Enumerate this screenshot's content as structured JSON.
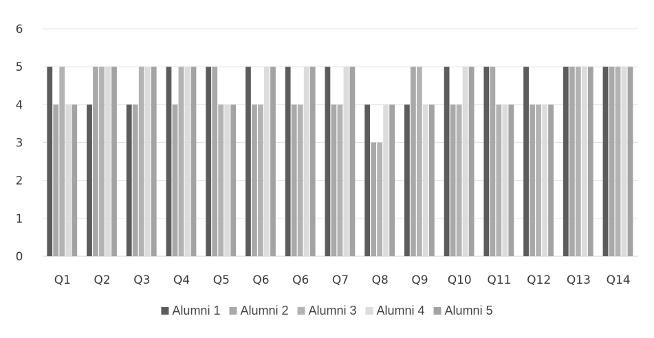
{
  "chart_data": {
    "type": "bar",
    "title": "",
    "xlabel": "",
    "ylabel": "",
    "ylim": [
      0,
      6
    ],
    "yticks": [
      "0",
      "1",
      "2",
      "3",
      "4",
      "5",
      "6"
    ],
    "grid": true,
    "legend_position": "bottom",
    "categories": [
      "Q1",
      "Q2",
      "Q3",
      "Q4",
      "Q5",
      "Q6",
      "Q6",
      "Q7",
      "Q8",
      "Q9",
      "Q10",
      "Q11",
      "Q12",
      "Q13",
      "Q14"
    ],
    "series": [
      {
        "name": "Alumni 1",
        "color": "#5c5c5c",
        "values": [
          5,
          4,
          4,
          5,
          5,
          5,
          5,
          5,
          4,
          4,
          5,
          5,
          5,
          5,
          5
        ]
      },
      {
        "name": "Alumni 2",
        "color": "#a9a9a9",
        "values": [
          4,
          5,
          4,
          4,
          5,
          4,
          4,
          4,
          3,
          5,
          4,
          5,
          4,
          5,
          5
        ]
      },
      {
        "name": "Alumni 3",
        "color": "#b3b3b3",
        "values": [
          5,
          5,
          5,
          5,
          4,
          4,
          4,
          4,
          3,
          5,
          4,
          4,
          4,
          5,
          5
        ]
      },
      {
        "name": "Alumni 4",
        "color": "#dcdcdc",
        "values": [
          4,
          5,
          5,
          5,
          4,
          5,
          5,
          5,
          4,
          4,
          5,
          4,
          4,
          5,
          5
        ]
      },
      {
        "name": "Alumni 5",
        "color": "#a3a3a3",
        "values": [
          4,
          5,
          5,
          5,
          4,
          5,
          5,
          5,
          4,
          4,
          5,
          4,
          4,
          5,
          5
        ]
      }
    ]
  }
}
